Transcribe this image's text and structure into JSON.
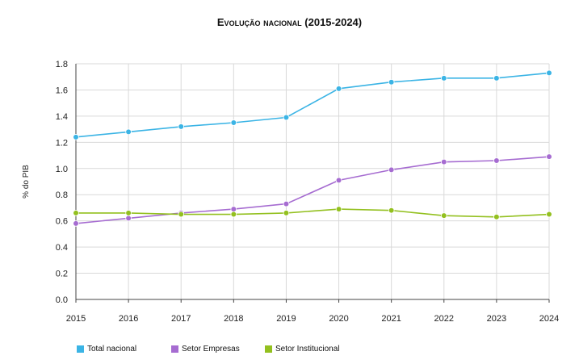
{
  "chart_data": {
    "type": "line",
    "title": "Evolução nacional (2015-2024)",
    "xlabel": "",
    "ylabel": "% do PIB",
    "categories": [
      "2015",
      "2016",
      "2017",
      "2018",
      "2019",
      "2020",
      "2021",
      "2022",
      "2023",
      "2024"
    ],
    "ylim": [
      0,
      1.8
    ],
    "yticks": [
      "0.0",
      "0.2",
      "0.4",
      "0.6",
      "0.8",
      "1.0",
      "1.2",
      "1.4",
      "1.6",
      "1.8"
    ],
    "grid": true,
    "legend_position": "bottom-left",
    "series": [
      {
        "name": "Total nacional",
        "color": "#3bb4e5",
        "values": [
          1.24,
          1.28,
          1.32,
          1.35,
          1.39,
          1.61,
          1.66,
          1.69,
          1.69,
          1.73
        ]
      },
      {
        "name": "Setor Empresas",
        "color": "#a66cd1",
        "values": [
          0.58,
          0.62,
          0.66,
          0.69,
          0.73,
          0.91,
          0.99,
          1.05,
          1.06,
          1.09
        ]
      },
      {
        "name": "Setor Institucional",
        "color": "#93c01f",
        "values": [
          0.66,
          0.66,
          0.65,
          0.65,
          0.66,
          0.69,
          0.68,
          0.64,
          0.63,
          0.65
        ]
      }
    ]
  }
}
